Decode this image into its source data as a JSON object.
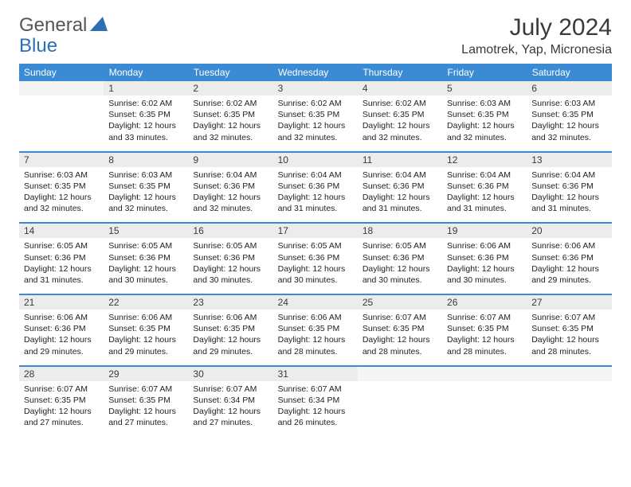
{
  "logo": {
    "general": "General",
    "blue": "Blue"
  },
  "title": "July 2024",
  "location": "Lamotrek, Yap, Micronesia",
  "colors": {
    "header_bg": "#3b8bd4",
    "header_text": "#ffffff",
    "daynum_bg": "#ececec",
    "border": "#3b8bd4",
    "logo_blue": "#2c6fb5",
    "text": "#3a3a3a"
  },
  "weekdays": [
    "Sunday",
    "Monday",
    "Tuesday",
    "Wednesday",
    "Thursday",
    "Friday",
    "Saturday"
  ],
  "weeks": [
    [
      null,
      {
        "n": "1",
        "sr": "Sunrise: 6:02 AM",
        "ss": "Sunset: 6:35 PM",
        "d1": "Daylight: 12 hours",
        "d2": "and 33 minutes."
      },
      {
        "n": "2",
        "sr": "Sunrise: 6:02 AM",
        "ss": "Sunset: 6:35 PM",
        "d1": "Daylight: 12 hours",
        "d2": "and 32 minutes."
      },
      {
        "n": "3",
        "sr": "Sunrise: 6:02 AM",
        "ss": "Sunset: 6:35 PM",
        "d1": "Daylight: 12 hours",
        "d2": "and 32 minutes."
      },
      {
        "n": "4",
        "sr": "Sunrise: 6:02 AM",
        "ss": "Sunset: 6:35 PM",
        "d1": "Daylight: 12 hours",
        "d2": "and 32 minutes."
      },
      {
        "n": "5",
        "sr": "Sunrise: 6:03 AM",
        "ss": "Sunset: 6:35 PM",
        "d1": "Daylight: 12 hours",
        "d2": "and 32 minutes."
      },
      {
        "n": "6",
        "sr": "Sunrise: 6:03 AM",
        "ss": "Sunset: 6:35 PM",
        "d1": "Daylight: 12 hours",
        "d2": "and 32 minutes."
      }
    ],
    [
      {
        "n": "7",
        "sr": "Sunrise: 6:03 AM",
        "ss": "Sunset: 6:35 PM",
        "d1": "Daylight: 12 hours",
        "d2": "and 32 minutes."
      },
      {
        "n": "8",
        "sr": "Sunrise: 6:03 AM",
        "ss": "Sunset: 6:35 PM",
        "d1": "Daylight: 12 hours",
        "d2": "and 32 minutes."
      },
      {
        "n": "9",
        "sr": "Sunrise: 6:04 AM",
        "ss": "Sunset: 6:36 PM",
        "d1": "Daylight: 12 hours",
        "d2": "and 32 minutes."
      },
      {
        "n": "10",
        "sr": "Sunrise: 6:04 AM",
        "ss": "Sunset: 6:36 PM",
        "d1": "Daylight: 12 hours",
        "d2": "and 31 minutes."
      },
      {
        "n": "11",
        "sr": "Sunrise: 6:04 AM",
        "ss": "Sunset: 6:36 PM",
        "d1": "Daylight: 12 hours",
        "d2": "and 31 minutes."
      },
      {
        "n": "12",
        "sr": "Sunrise: 6:04 AM",
        "ss": "Sunset: 6:36 PM",
        "d1": "Daylight: 12 hours",
        "d2": "and 31 minutes."
      },
      {
        "n": "13",
        "sr": "Sunrise: 6:04 AM",
        "ss": "Sunset: 6:36 PM",
        "d1": "Daylight: 12 hours",
        "d2": "and 31 minutes."
      }
    ],
    [
      {
        "n": "14",
        "sr": "Sunrise: 6:05 AM",
        "ss": "Sunset: 6:36 PM",
        "d1": "Daylight: 12 hours",
        "d2": "and 31 minutes."
      },
      {
        "n": "15",
        "sr": "Sunrise: 6:05 AM",
        "ss": "Sunset: 6:36 PM",
        "d1": "Daylight: 12 hours",
        "d2": "and 30 minutes."
      },
      {
        "n": "16",
        "sr": "Sunrise: 6:05 AM",
        "ss": "Sunset: 6:36 PM",
        "d1": "Daylight: 12 hours",
        "d2": "and 30 minutes."
      },
      {
        "n": "17",
        "sr": "Sunrise: 6:05 AM",
        "ss": "Sunset: 6:36 PM",
        "d1": "Daylight: 12 hours",
        "d2": "and 30 minutes."
      },
      {
        "n": "18",
        "sr": "Sunrise: 6:05 AM",
        "ss": "Sunset: 6:36 PM",
        "d1": "Daylight: 12 hours",
        "d2": "and 30 minutes."
      },
      {
        "n": "19",
        "sr": "Sunrise: 6:06 AM",
        "ss": "Sunset: 6:36 PM",
        "d1": "Daylight: 12 hours",
        "d2": "and 30 minutes."
      },
      {
        "n": "20",
        "sr": "Sunrise: 6:06 AM",
        "ss": "Sunset: 6:36 PM",
        "d1": "Daylight: 12 hours",
        "d2": "and 29 minutes."
      }
    ],
    [
      {
        "n": "21",
        "sr": "Sunrise: 6:06 AM",
        "ss": "Sunset: 6:36 PM",
        "d1": "Daylight: 12 hours",
        "d2": "and 29 minutes."
      },
      {
        "n": "22",
        "sr": "Sunrise: 6:06 AM",
        "ss": "Sunset: 6:35 PM",
        "d1": "Daylight: 12 hours",
        "d2": "and 29 minutes."
      },
      {
        "n": "23",
        "sr": "Sunrise: 6:06 AM",
        "ss": "Sunset: 6:35 PM",
        "d1": "Daylight: 12 hours",
        "d2": "and 29 minutes."
      },
      {
        "n": "24",
        "sr": "Sunrise: 6:06 AM",
        "ss": "Sunset: 6:35 PM",
        "d1": "Daylight: 12 hours",
        "d2": "and 28 minutes."
      },
      {
        "n": "25",
        "sr": "Sunrise: 6:07 AM",
        "ss": "Sunset: 6:35 PM",
        "d1": "Daylight: 12 hours",
        "d2": "and 28 minutes."
      },
      {
        "n": "26",
        "sr": "Sunrise: 6:07 AM",
        "ss": "Sunset: 6:35 PM",
        "d1": "Daylight: 12 hours",
        "d2": "and 28 minutes."
      },
      {
        "n": "27",
        "sr": "Sunrise: 6:07 AM",
        "ss": "Sunset: 6:35 PM",
        "d1": "Daylight: 12 hours",
        "d2": "and 28 minutes."
      }
    ],
    [
      {
        "n": "28",
        "sr": "Sunrise: 6:07 AM",
        "ss": "Sunset: 6:35 PM",
        "d1": "Daylight: 12 hours",
        "d2": "and 27 minutes."
      },
      {
        "n": "29",
        "sr": "Sunrise: 6:07 AM",
        "ss": "Sunset: 6:35 PM",
        "d1": "Daylight: 12 hours",
        "d2": "and 27 minutes."
      },
      {
        "n": "30",
        "sr": "Sunrise: 6:07 AM",
        "ss": "Sunset: 6:34 PM",
        "d1": "Daylight: 12 hours",
        "d2": "and 27 minutes."
      },
      {
        "n": "31",
        "sr": "Sunrise: 6:07 AM",
        "ss": "Sunset: 6:34 PM",
        "d1": "Daylight: 12 hours",
        "d2": "and 26 minutes."
      },
      null,
      null,
      null
    ]
  ]
}
